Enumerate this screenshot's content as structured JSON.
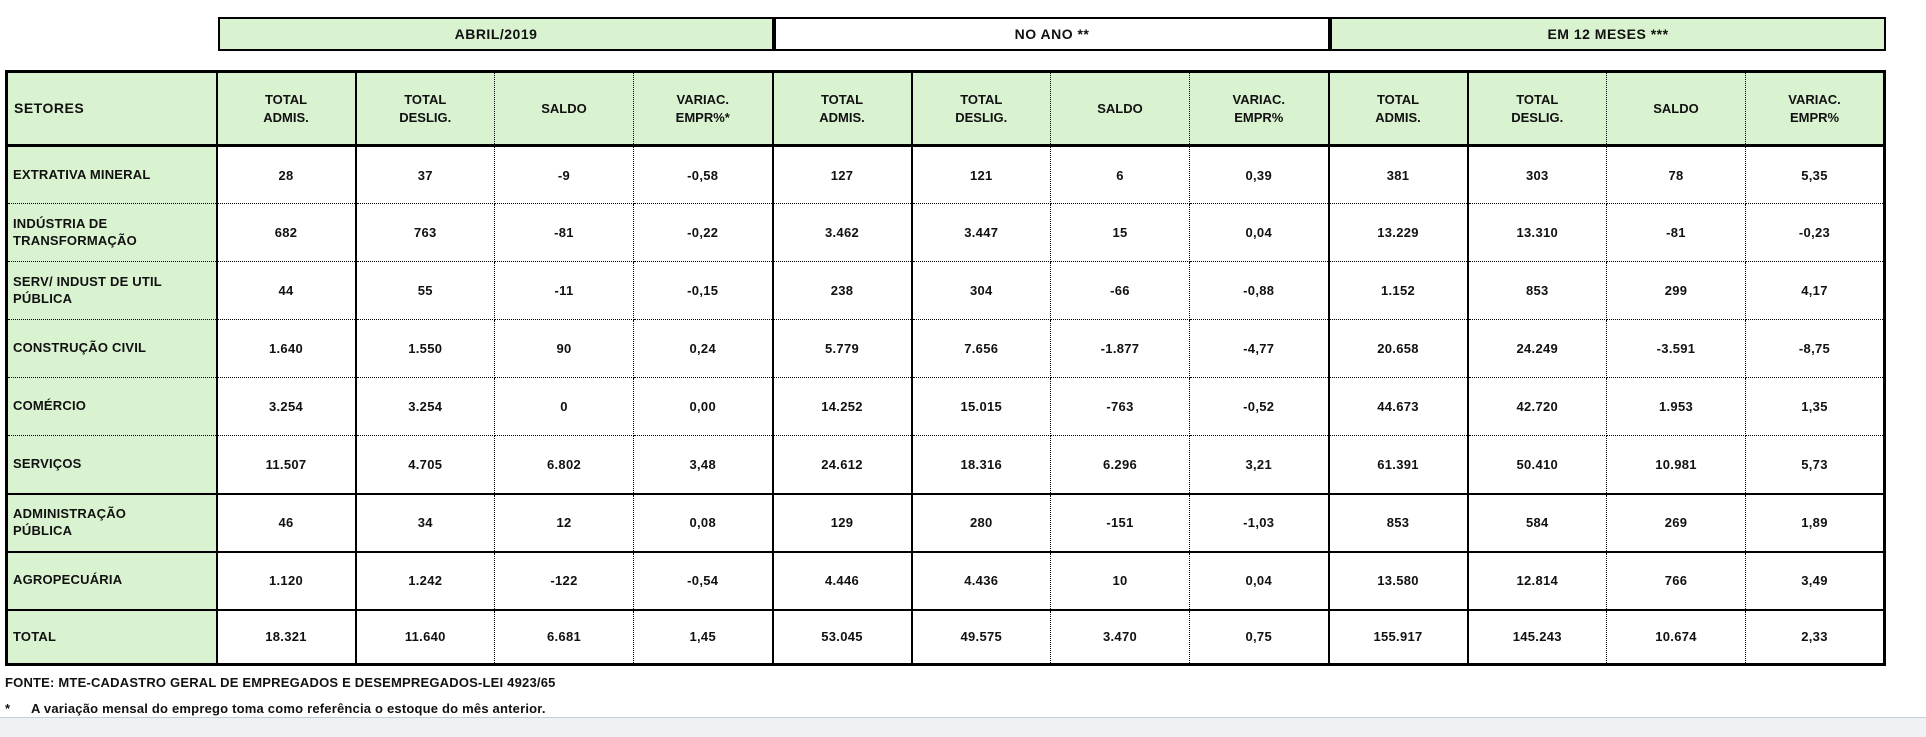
{
  "colors": {
    "header_green": "#d9f2d0",
    "border_black": "#000000",
    "strip_bg": "#f0f1f2",
    "strip_line": "#c5ced6"
  },
  "table": {
    "groups": [
      {
        "label": "ABRIL/2019"
      },
      {
        "label": "NO ANO **"
      },
      {
        "label": "EM 12 MESES ***"
      }
    ],
    "setores_header": "SETORES",
    "col_headers": [
      "TOTAL\nADMIS.",
      "TOTAL\nDESLIG.",
      "SALDO",
      "VARIAC.\nEMPR%*",
      "TOTAL\nADMIS.",
      "TOTAL\nDESLIG.",
      "SALDO",
      "VARIAC.\nEMPR%",
      "TOTAL\nADMIS.",
      "TOTAL\nDESLIG.",
      "SALDO",
      "VARIAC.\nEMPR%"
    ],
    "rows": [
      {
        "setor": "EXTRATIVA MINERAL",
        "sep": "dotted",
        "total": false,
        "values": [
          "28",
          "37",
          "-9",
          "-0,58",
          "127",
          "121",
          "6",
          "0,39",
          "381",
          "303",
          "78",
          "5,35"
        ]
      },
      {
        "setor": "INDÚSTRIA DE\nTRANSFORMAÇÃO",
        "sep": "dotted",
        "total": false,
        "values": [
          "682",
          "763",
          "-81",
          "-0,22",
          "3.462",
          "3.447",
          "15",
          "0,04",
          "13.229",
          "13.310",
          "-81",
          "-0,23"
        ]
      },
      {
        "setor": "SERV/ INDUST DE UTIL\nPÚBLICA",
        "sep": "dotted",
        "total": false,
        "values": [
          "44",
          "55",
          "-11",
          "-0,15",
          "238",
          "304",
          "-66",
          "-0,88",
          "1.152",
          "853",
          "299",
          "4,17"
        ]
      },
      {
        "setor": "CONSTRUÇÃO CIVIL",
        "sep": "dotted",
        "total": false,
        "values": [
          "1.640",
          "1.550",
          "90",
          "0,24",
          "5.779",
          "7.656",
          "-1.877",
          "-4,77",
          "20.658",
          "24.249",
          "-3.591",
          "-8,75"
        ]
      },
      {
        "setor": "COMÉRCIO",
        "sep": "dotted",
        "total": false,
        "values": [
          "3.254",
          "3.254",
          "0",
          "0,00",
          "14.252",
          "15.015",
          "-763",
          "-0,52",
          "44.673",
          "42.720",
          "1.953",
          "1,35"
        ]
      },
      {
        "setor": "SERVIÇOS",
        "sep": "solid",
        "total": false,
        "values": [
          "11.507",
          "4.705",
          "6.802",
          "3,48",
          "24.612",
          "18.316",
          "6.296",
          "3,21",
          "61.391",
          "50.410",
          "10.981",
          "5,73"
        ]
      },
      {
        "setor": "ADMINISTRAÇÃO\nPÚBLICA",
        "sep": "solid",
        "total": false,
        "values": [
          "46",
          "34",
          "12",
          "0,08",
          "129",
          "280",
          "-151",
          "-1,03",
          "853",
          "584",
          "269",
          "1,89"
        ]
      },
      {
        "setor": "AGROPECUÁRIA",
        "sep": "solid",
        "total": false,
        "values": [
          "1.120",
          "1.242",
          "-122",
          "-0,54",
          "4.446",
          "4.436",
          "10",
          "0,04",
          "13.580",
          "12.814",
          "766",
          "3,49"
        ]
      },
      {
        "setor": "TOTAL",
        "sep": "none",
        "total": true,
        "values": [
          "18.321",
          "11.640",
          "6.681",
          "1,45",
          "53.045",
          "49.575",
          "3.470",
          "0,75",
          "155.917",
          "145.243",
          "10.674",
          "2,33"
        ]
      }
    ]
  },
  "footer": {
    "fonte": "FONTE: MTE-CADASTRO GERAL DE EMPREGADOS E DESEMPREGADOS-LEI 4923/65",
    "note_marker": "*",
    "note_text": "A variação mensal do emprego toma como referência o estoque do mês anterior."
  }
}
